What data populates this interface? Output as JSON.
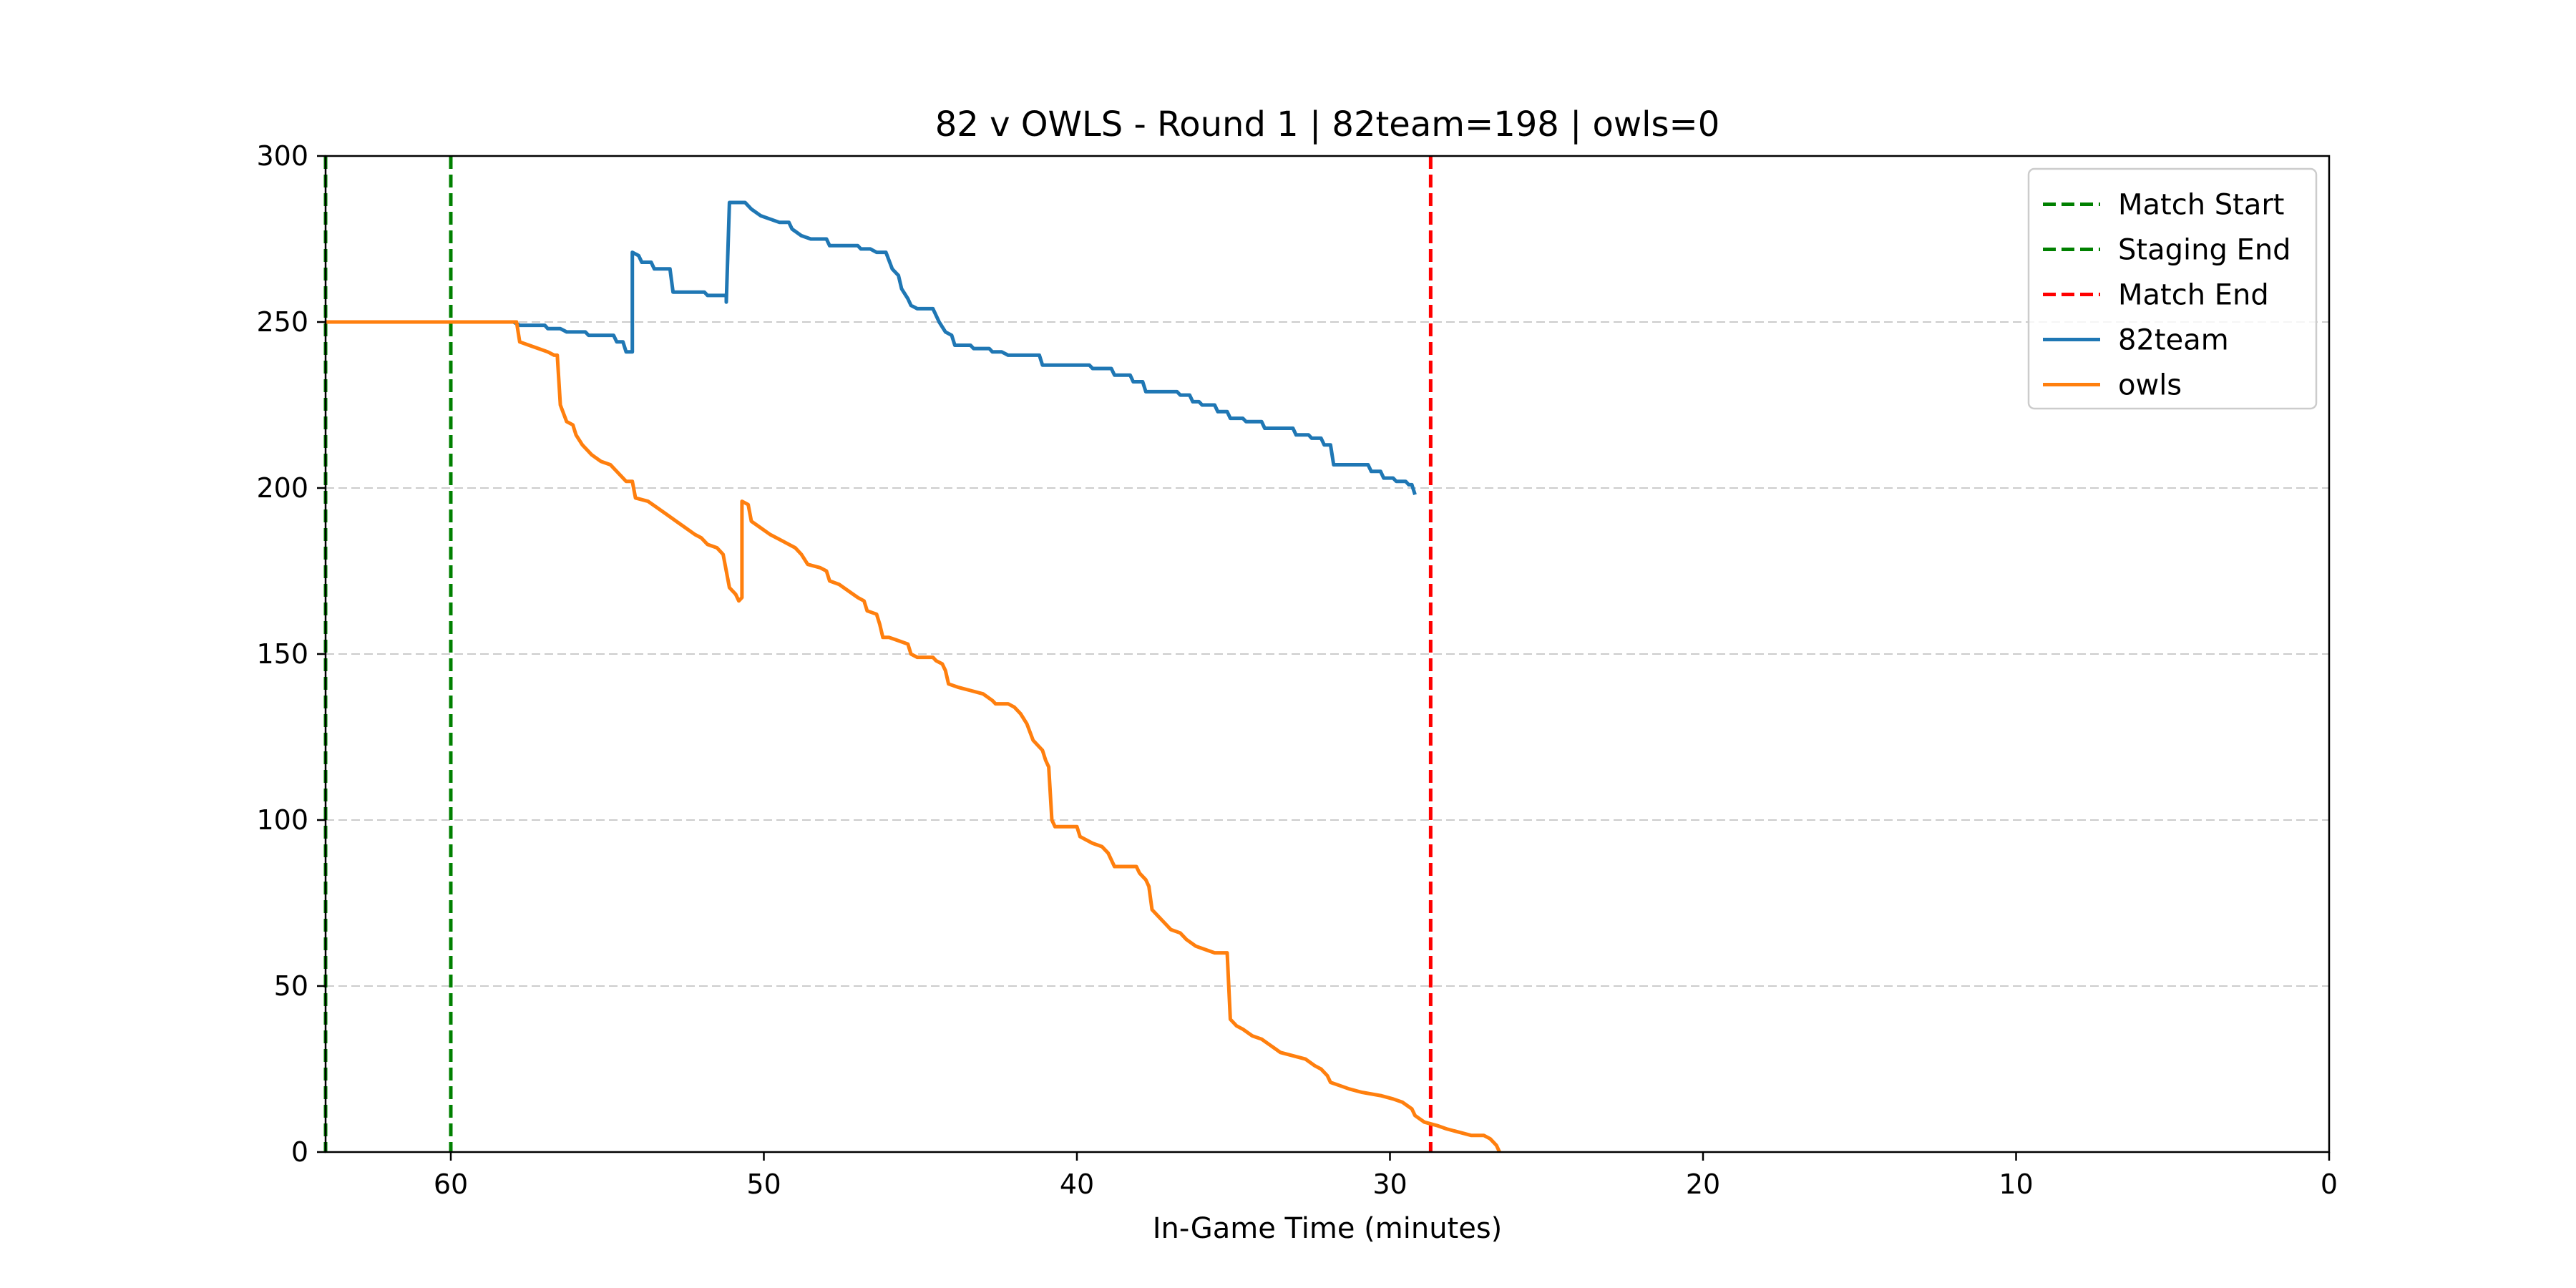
{
  "chart_data": {
    "type": "line",
    "title": "82 v OWLS - Round 1 | 82team=198 | owls=0",
    "xlabel": "In-Game Time (minutes)",
    "ylabel": "",
    "xlim": [
      64,
      0
    ],
    "ylim": [
      0,
      300
    ],
    "x_inverted": true,
    "xticks": [
      60,
      50,
      40,
      30,
      20,
      10,
      0
    ],
    "yticks": [
      0,
      50,
      100,
      150,
      200,
      250,
      300
    ],
    "grid": "horizontal-dashed",
    "legend_position": "top-right",
    "colors": {
      "series_82team": "#1f77b4",
      "series_owls": "#ff7f0e",
      "match_start": "#008000",
      "staging_end": "#008000",
      "match_end": "#ff0000",
      "grid": "#cccccc"
    },
    "vlines": [
      {
        "name": "Match Start",
        "x": 64,
        "color": "#008000"
      },
      {
        "name": "Staging End",
        "x": 60,
        "color": "#008000"
      },
      {
        "name": "Match End",
        "x": 28.7,
        "color": "#ff0000"
      }
    ],
    "series": [
      {
        "name": "82team",
        "color": "#1f77b4",
        "points": [
          [
            64,
            250
          ],
          [
            58.0,
            250
          ],
          [
            57.8,
            249
          ],
          [
            57.0,
            249
          ],
          [
            56.9,
            248
          ],
          [
            56.5,
            248
          ],
          [
            56.3,
            247
          ],
          [
            55.7,
            247
          ],
          [
            55.6,
            246
          ],
          [
            54.8,
            246
          ],
          [
            54.7,
            244
          ],
          [
            54.5,
            244
          ],
          [
            54.4,
            241
          ],
          [
            54.2,
            241
          ],
          [
            54.2,
            271
          ],
          [
            54.0,
            270
          ],
          [
            53.9,
            268
          ],
          [
            53.6,
            268
          ],
          [
            53.5,
            266
          ],
          [
            53.0,
            266
          ],
          [
            52.9,
            259
          ],
          [
            51.9,
            259
          ],
          [
            51.8,
            258
          ],
          [
            51.2,
            258
          ],
          [
            51.2,
            256
          ],
          [
            51.1,
            286
          ],
          [
            50.6,
            286
          ],
          [
            50.4,
            284
          ],
          [
            50.1,
            282
          ],
          [
            49.8,
            281
          ],
          [
            49.5,
            280
          ],
          [
            49.2,
            280
          ],
          [
            49.1,
            278
          ],
          [
            48.8,
            276
          ],
          [
            48.5,
            275
          ],
          [
            48.0,
            275
          ],
          [
            47.9,
            273
          ],
          [
            47.0,
            273
          ],
          [
            46.9,
            272
          ],
          [
            46.6,
            272
          ],
          [
            46.4,
            271
          ],
          [
            46.1,
            271
          ],
          [
            45.9,
            266
          ],
          [
            45.7,
            264
          ],
          [
            45.6,
            260
          ],
          [
            45.4,
            257
          ],
          [
            45.3,
            255
          ],
          [
            45.1,
            254
          ],
          [
            44.6,
            254
          ],
          [
            44.4,
            250
          ],
          [
            44.2,
            247
          ],
          [
            44.0,
            246
          ],
          [
            43.9,
            243
          ],
          [
            43.4,
            243
          ],
          [
            43.3,
            242
          ],
          [
            42.8,
            242
          ],
          [
            42.7,
            241
          ],
          [
            42.4,
            241
          ],
          [
            42.2,
            240
          ],
          [
            41.2,
            240
          ],
          [
            41.1,
            237
          ],
          [
            39.6,
            237
          ],
          [
            39.5,
            236
          ],
          [
            38.9,
            236
          ],
          [
            38.8,
            234
          ],
          [
            38.3,
            234
          ],
          [
            38.2,
            232
          ],
          [
            37.9,
            232
          ],
          [
            37.8,
            229
          ],
          [
            36.8,
            229
          ],
          [
            36.7,
            228
          ],
          [
            36.4,
            228
          ],
          [
            36.3,
            226
          ],
          [
            36.1,
            226
          ],
          [
            36.0,
            225
          ],
          [
            35.6,
            225
          ],
          [
            35.5,
            223
          ],
          [
            35.2,
            223
          ],
          [
            35.1,
            221
          ],
          [
            34.7,
            221
          ],
          [
            34.6,
            220
          ],
          [
            34.1,
            220
          ],
          [
            34.0,
            218
          ],
          [
            33.1,
            218
          ],
          [
            33.0,
            216
          ],
          [
            32.6,
            216
          ],
          [
            32.5,
            215
          ],
          [
            32.2,
            215
          ],
          [
            32.1,
            213
          ],
          [
            31.9,
            213
          ],
          [
            31.8,
            207
          ],
          [
            30.7,
            207
          ],
          [
            30.6,
            205
          ],
          [
            30.3,
            205
          ],
          [
            30.2,
            203
          ],
          [
            29.9,
            203
          ],
          [
            29.8,
            202
          ],
          [
            29.5,
            202
          ],
          [
            29.4,
            201
          ],
          [
            29.3,
            201
          ],
          [
            29.2,
            198
          ]
        ]
      },
      {
        "name": "owls",
        "color": "#ff7f0e",
        "points": [
          [
            64,
            250
          ],
          [
            57.9,
            250
          ],
          [
            57.8,
            244
          ],
          [
            57.5,
            243
          ],
          [
            57.2,
            242
          ],
          [
            56.9,
            241
          ],
          [
            56.7,
            240
          ],
          [
            56.6,
            240
          ],
          [
            56.5,
            225
          ],
          [
            56.3,
            220
          ],
          [
            56.1,
            219
          ],
          [
            56.0,
            216
          ],
          [
            55.8,
            213
          ],
          [
            55.5,
            210
          ],
          [
            55.2,
            208
          ],
          [
            54.9,
            207
          ],
          [
            54.7,
            205
          ],
          [
            54.4,
            202
          ],
          [
            54.2,
            202
          ],
          [
            54.1,
            197
          ],
          [
            53.7,
            196
          ],
          [
            53.4,
            194
          ],
          [
            53.1,
            192
          ],
          [
            52.8,
            190
          ],
          [
            52.5,
            188
          ],
          [
            52.2,
            186
          ],
          [
            52.0,
            185
          ],
          [
            51.8,
            183
          ],
          [
            51.5,
            182
          ],
          [
            51.3,
            180
          ],
          [
            51.2,
            175
          ],
          [
            51.1,
            170
          ],
          [
            50.9,
            168
          ],
          [
            50.8,
            166
          ],
          [
            50.7,
            167
          ],
          [
            50.7,
            196
          ],
          [
            50.5,
            195
          ],
          [
            50.4,
            190
          ],
          [
            50.1,
            188
          ],
          [
            49.8,
            186
          ],
          [
            49.4,
            184
          ],
          [
            49.0,
            182
          ],
          [
            48.8,
            180
          ],
          [
            48.6,
            177
          ],
          [
            48.2,
            176
          ],
          [
            48.0,
            175
          ],
          [
            47.9,
            172
          ],
          [
            47.6,
            171
          ],
          [
            47.3,
            169
          ],
          [
            47.0,
            167
          ],
          [
            46.8,
            166
          ],
          [
            46.7,
            163
          ],
          [
            46.4,
            162
          ],
          [
            46.3,
            159
          ],
          [
            46.2,
            155
          ],
          [
            46.0,
            155
          ],
          [
            45.7,
            154
          ],
          [
            45.4,
            153
          ],
          [
            45.3,
            150
          ],
          [
            45.1,
            149
          ],
          [
            44.6,
            149
          ],
          [
            44.5,
            148
          ],
          [
            44.3,
            147
          ],
          [
            44.2,
            145
          ],
          [
            44.1,
            141
          ],
          [
            43.8,
            140
          ],
          [
            43.4,
            139
          ],
          [
            43.0,
            138
          ],
          [
            42.7,
            136
          ],
          [
            42.6,
            135
          ],
          [
            42.2,
            135
          ],
          [
            42.0,
            134
          ],
          [
            41.8,
            132
          ],
          [
            41.6,
            129
          ],
          [
            41.4,
            124
          ],
          [
            41.2,
            122
          ],
          [
            41.1,
            121
          ],
          [
            41.0,
            118
          ],
          [
            40.9,
            116
          ],
          [
            40.8,
            100
          ],
          [
            40.7,
            98
          ],
          [
            40.0,
            98
          ],
          [
            39.9,
            95
          ],
          [
            39.5,
            93
          ],
          [
            39.2,
            92
          ],
          [
            39.0,
            90
          ],
          [
            38.9,
            88
          ],
          [
            38.8,
            86
          ],
          [
            38.1,
            86
          ],
          [
            38.0,
            84
          ],
          [
            37.8,
            82
          ],
          [
            37.7,
            80
          ],
          [
            37.6,
            73
          ],
          [
            37.4,
            71
          ],
          [
            37.2,
            69
          ],
          [
            37.0,
            67
          ],
          [
            36.7,
            66
          ],
          [
            36.5,
            64
          ],
          [
            36.2,
            62
          ],
          [
            35.9,
            61
          ],
          [
            35.6,
            60
          ],
          [
            35.2,
            60
          ],
          [
            35.1,
            40
          ],
          [
            34.9,
            38
          ],
          [
            34.7,
            37
          ],
          [
            34.4,
            35
          ],
          [
            34.1,
            34
          ],
          [
            33.8,
            32
          ],
          [
            33.5,
            30
          ],
          [
            33.1,
            29
          ],
          [
            32.7,
            28
          ],
          [
            32.4,
            26
          ],
          [
            32.2,
            25
          ],
          [
            32.0,
            23
          ],
          [
            31.9,
            21
          ],
          [
            31.6,
            20
          ],
          [
            31.3,
            19
          ],
          [
            30.9,
            18
          ],
          [
            30.3,
            17
          ],
          [
            29.9,
            16
          ],
          [
            29.6,
            15
          ],
          [
            29.3,
            13
          ],
          [
            29.2,
            11
          ],
          [
            28.9,
            9
          ],
          [
            28.5,
            8
          ],
          [
            28.2,
            7
          ],
          [
            27.8,
            6
          ],
          [
            27.4,
            5
          ],
          [
            27.0,
            5
          ],
          [
            26.8,
            4
          ],
          [
            26.6,
            2
          ],
          [
            26.5,
            0
          ]
        ]
      }
    ]
  }
}
